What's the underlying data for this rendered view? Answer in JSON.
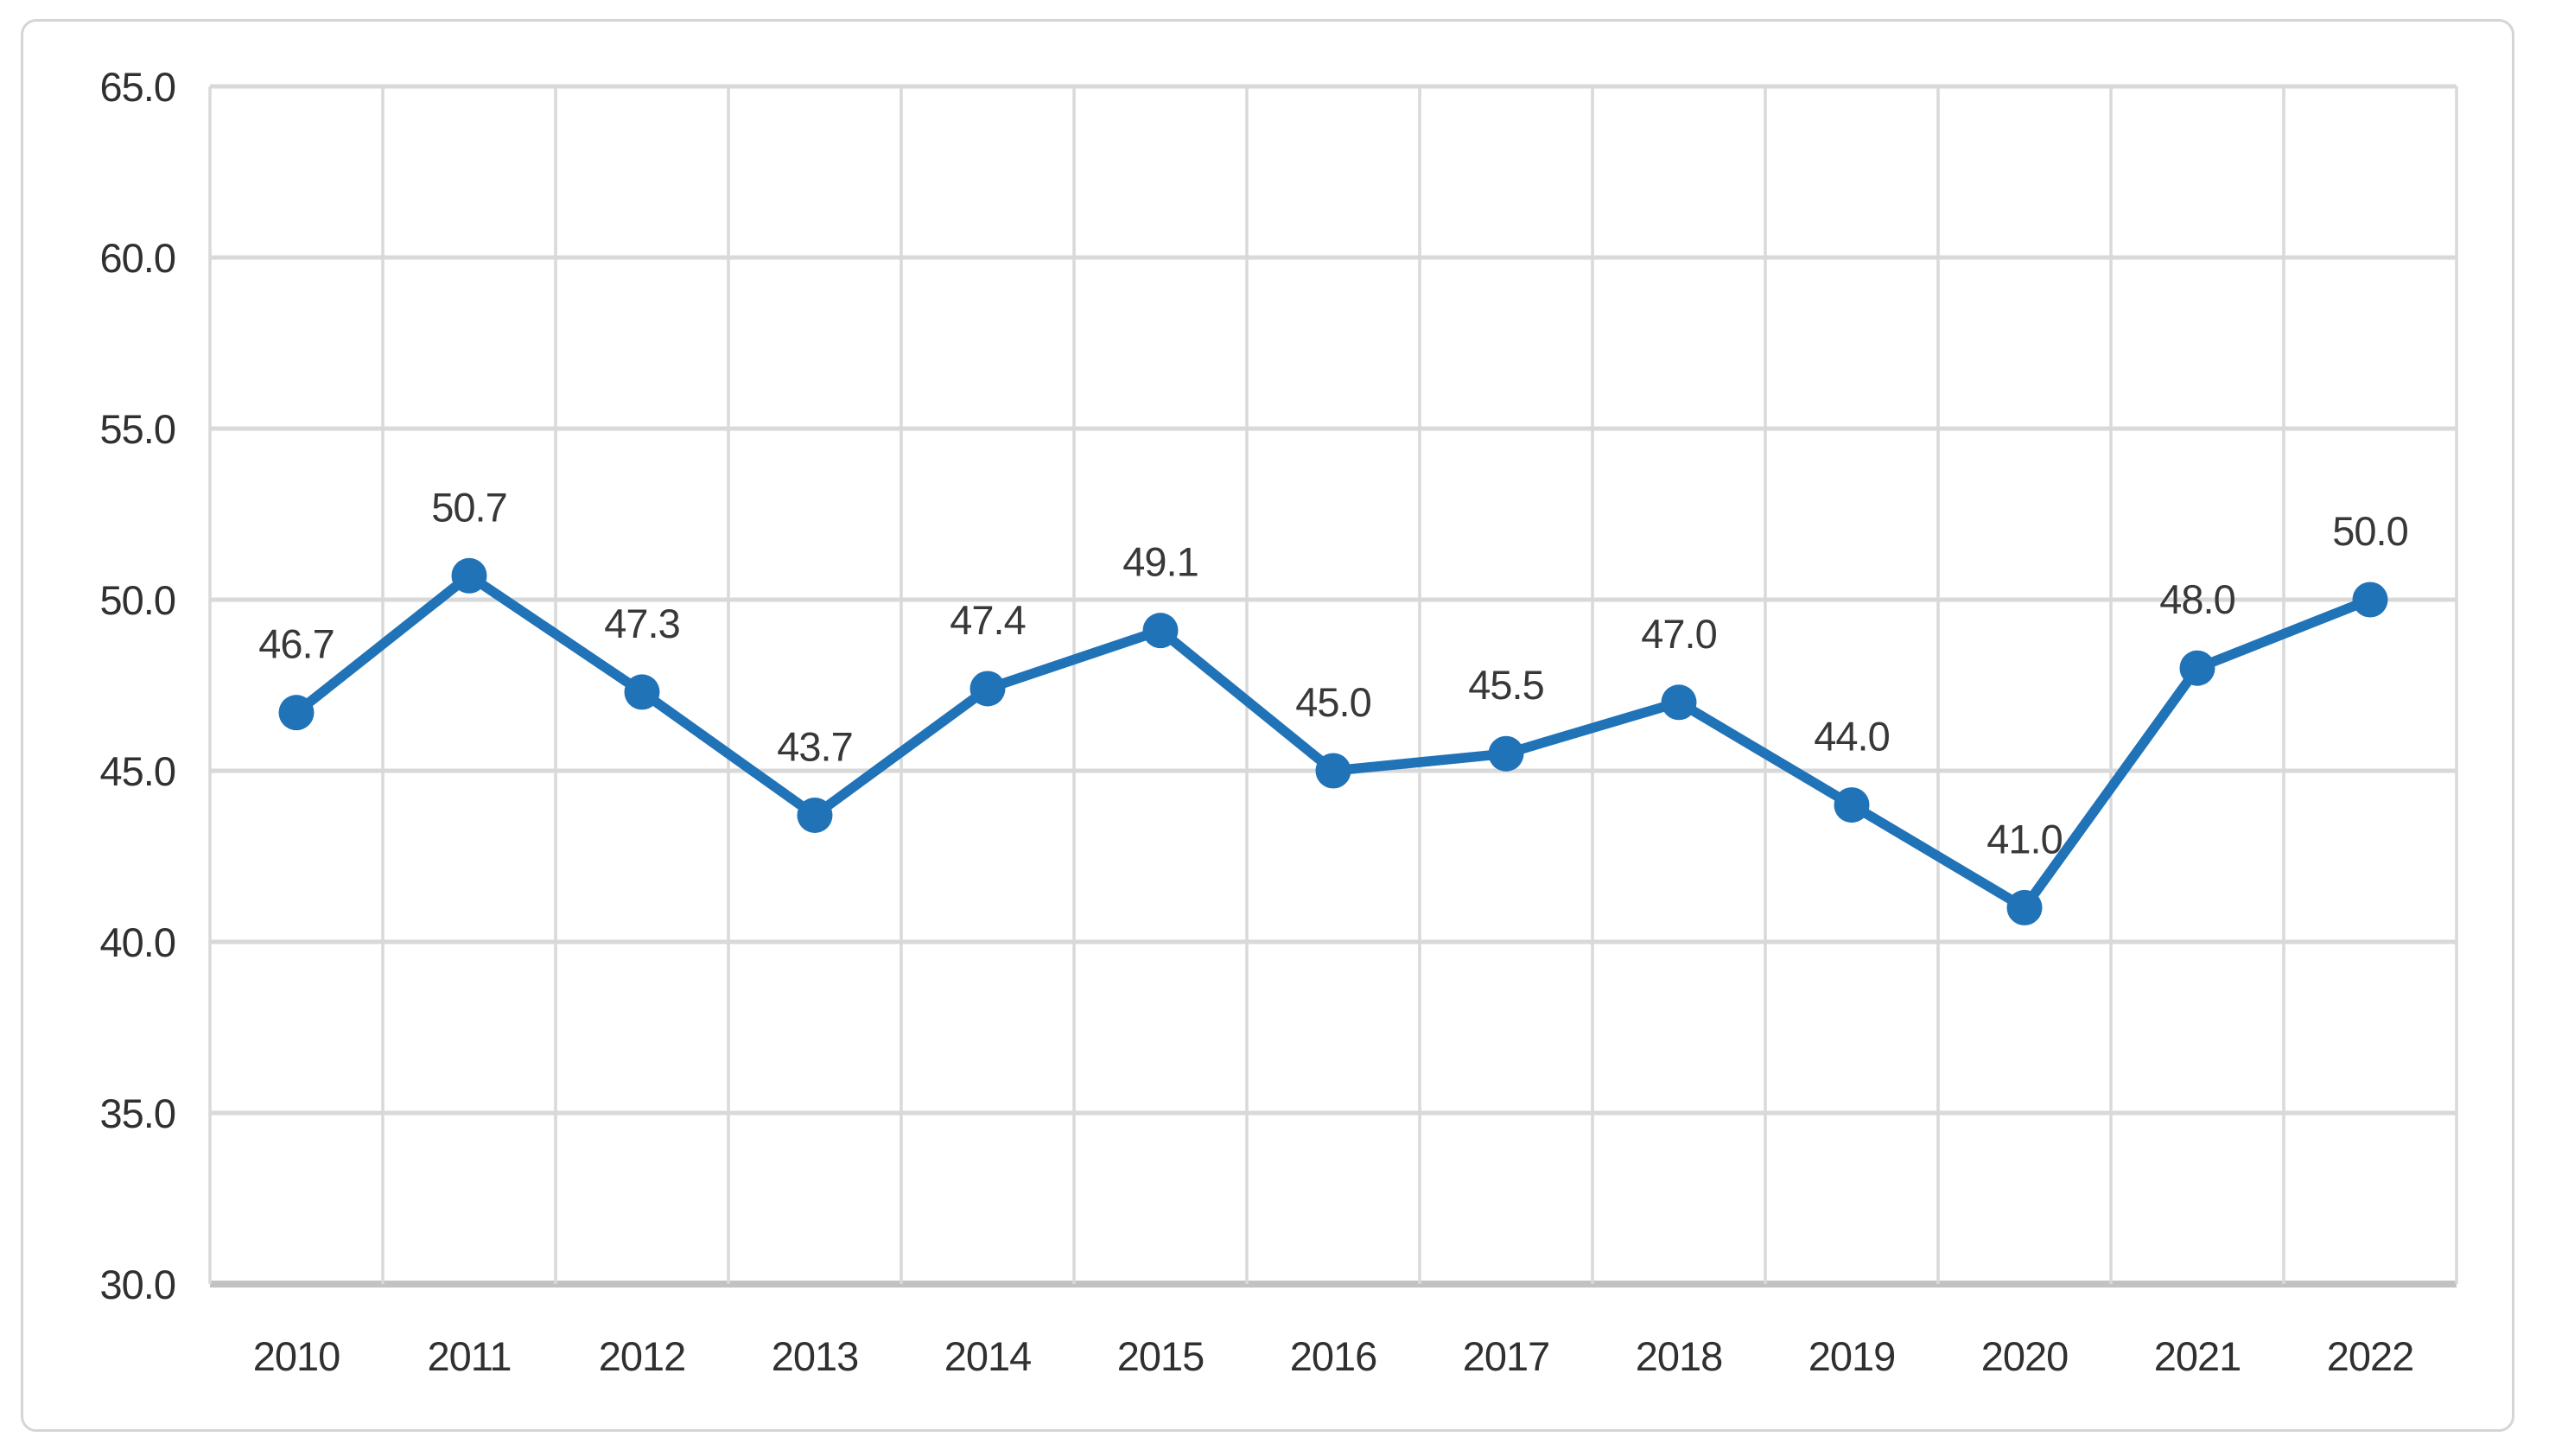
{
  "chart_data": {
    "type": "line",
    "title": "",
    "xlabel": "",
    "ylabel": "",
    "categories": [
      "2010",
      "2011",
      "2012",
      "2013",
      "2014",
      "2015",
      "2016",
      "2017",
      "2018",
      "2019",
      "2020",
      "2021",
      "2022"
    ],
    "series": [
      {
        "name": "series-1",
        "values": [
          46.7,
          50.7,
          47.3,
          43.7,
          47.4,
          49.1,
          45.0,
          45.5,
          47.0,
          44.0,
          41.0,
          48.0,
          50.0
        ]
      }
    ],
    "data_labels": [
      "46.7",
      "50.7",
      "47.3",
      "43.7",
      "47.4",
      "49.1",
      "45.0",
      "45.5",
      "47.0",
      "44.0",
      "41.0",
      "48.0",
      "50.0"
    ],
    "ylim": [
      30,
      65
    ],
    "ytick_step": 5,
    "ytick_labels": [
      "65.0",
      "60.0",
      "55.0",
      "50.0",
      "45.0",
      "40.0",
      "35.0",
      "30.0"
    ],
    "grid": true,
    "legend_position": "none",
    "data_label_position": "above",
    "colors": {
      "line": "#2173b8",
      "marker": "#2173b8",
      "gridline": "#d9d9d9",
      "axis_line": "#c2c2c2",
      "tick_text": "#303030",
      "data_label_text": "#383838",
      "frame_border": "#d5d5d5",
      "background": "#ffffff"
    }
  }
}
